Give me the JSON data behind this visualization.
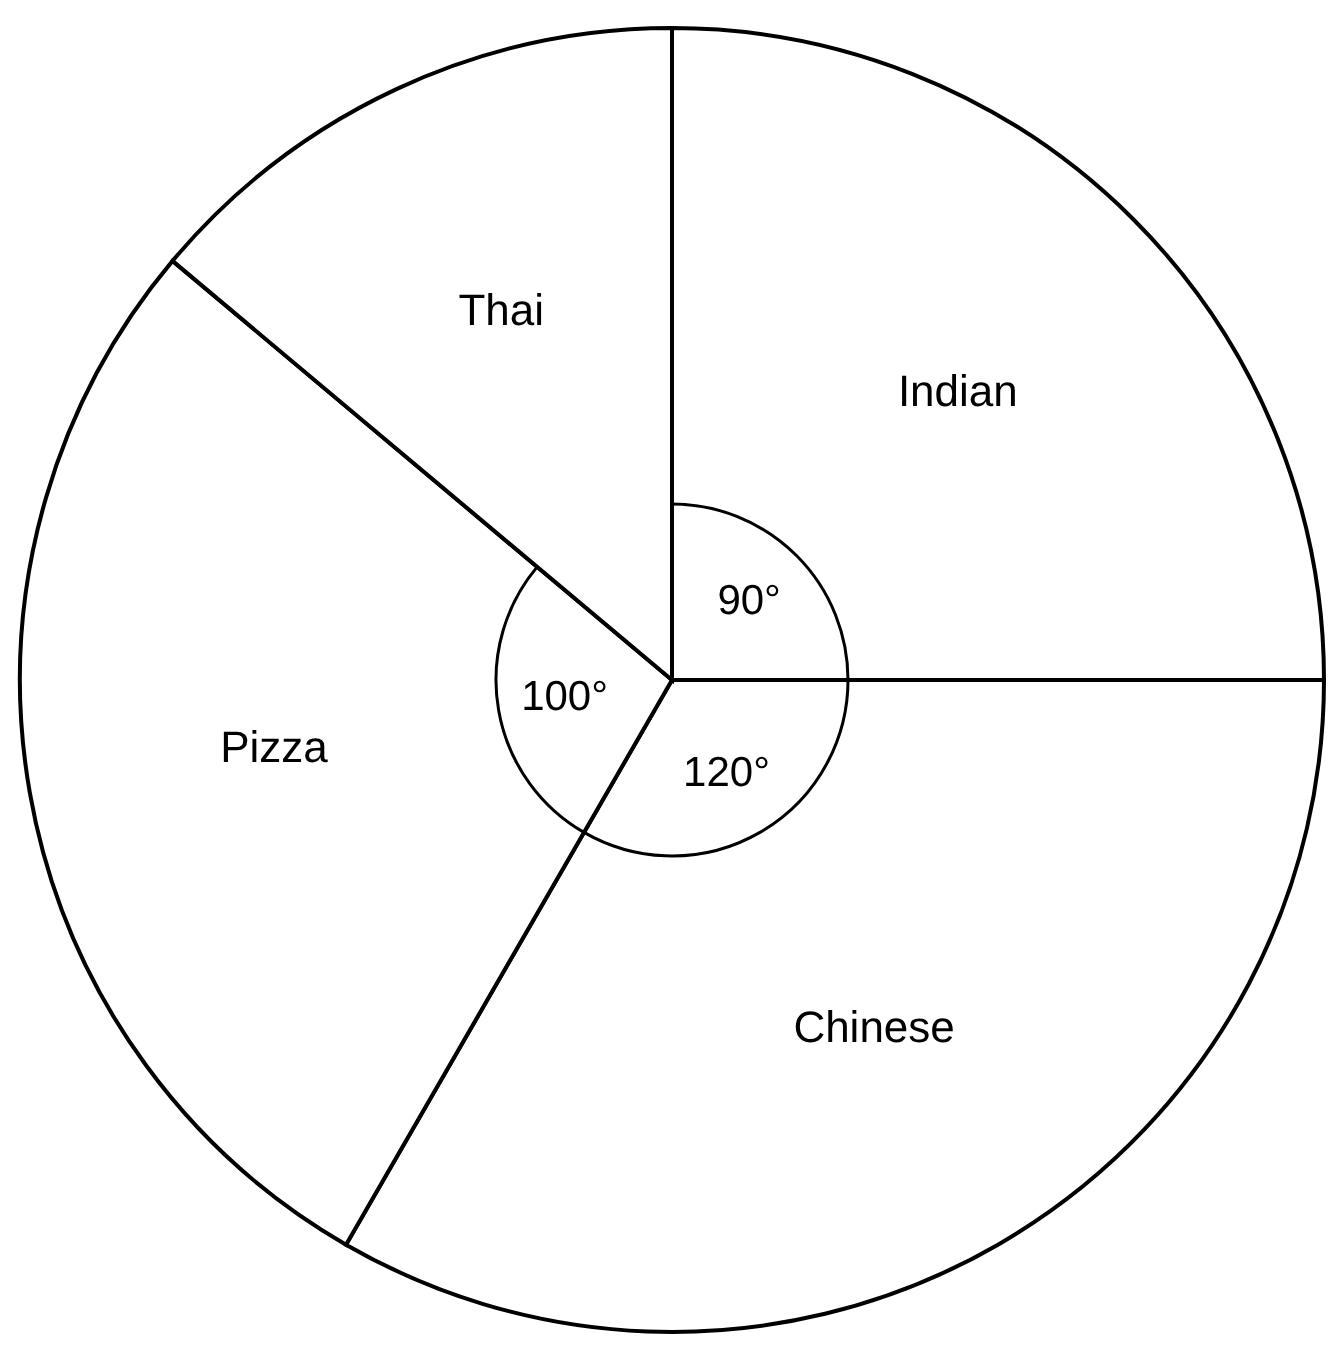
{
  "chart_data": {
    "type": "pie",
    "categories": [
      "Indian",
      "Chinese",
      "Pizza",
      "Thai"
    ],
    "values": [
      90,
      120,
      100,
      50
    ],
    "colors": [
      "#ffffff",
      "#ffffff",
      "#ffffff",
      "#ffffff"
    ],
    "value_labels": [
      "90°",
      "120°",
      "100°",
      null
    ]
  }
}
